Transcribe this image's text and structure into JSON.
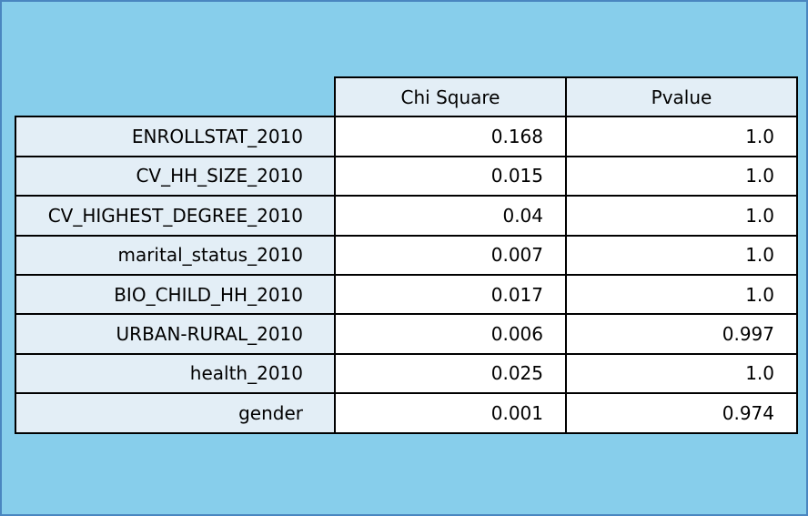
{
  "chart_data": {
    "type": "table",
    "columns": [
      "Chi Square",
      "Pvalue"
    ],
    "rows": [
      {
        "label": "ENROLLSTAT_2010",
        "chi_square": "0.168",
        "pvalue": "1.0"
      },
      {
        "label": "CV_HH_SIZE_2010",
        "chi_square": "0.015",
        "pvalue": "1.0"
      },
      {
        "label": "CV_HIGHEST_DEGREE_2010",
        "chi_square": "0.04",
        "pvalue": "1.0"
      },
      {
        "label": "marital_status_2010",
        "chi_square": "0.007",
        "pvalue": "1.0"
      },
      {
        "label": "BIO_CHILD_HH_2010",
        "chi_square": "0.017",
        "pvalue": "1.0"
      },
      {
        "label": "URBAN-RURAL_2010",
        "chi_square": "0.006",
        "pvalue": "0.997"
      },
      {
        "label": "health_2010",
        "chi_square": "0.025",
        "pvalue": "1.0"
      },
      {
        "label": "gender",
        "chi_square": "0.001",
        "pvalue": "0.974"
      }
    ]
  },
  "colors": {
    "figure_background": "#87ceeb",
    "header_cell_background": "#e3eef6",
    "value_cell_background": "#ffffff",
    "border": "#000000"
  }
}
